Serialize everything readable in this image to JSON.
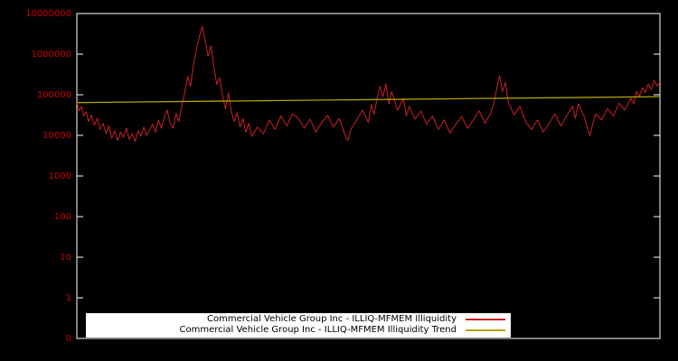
{
  "chart_data": {
    "type": "line",
    "title": "",
    "xlabel": "",
    "ylabel": "",
    "background": "#000000",
    "border_color": "#ffffff",
    "tick_label_color": "#cc0000",
    "grid": false,
    "legend_position": "bottom-center",
    "legend_background": "#ffffff",
    "y_axis": {
      "scale": "log",
      "range": [
        0.1,
        10000000
      ],
      "tick_labels": [
        "10000000",
        "1000000",
        "100000",
        "10000",
        "1000",
        "100",
        "10",
        "1",
        "0"
      ],
      "tick_values": [
        10000000,
        1000000,
        100000,
        10000,
        1000,
        100,
        10,
        1,
        0.1
      ]
    },
    "x_axis": {
      "tick_labels": []
    },
    "series": [
      {
        "name": "Commercial Vehicle Group Inc - ILLIQ-MFMEM Illiquidity",
        "color": "#cc2026",
        "points": [
          [
            0.0,
            65000
          ],
          [
            0.004,
            40000
          ],
          [
            0.008,
            52000
          ],
          [
            0.012,
            30000
          ],
          [
            0.016,
            38000
          ],
          [
            0.02,
            22000
          ],
          [
            0.025,
            32000
          ],
          [
            0.03,
            18000
          ],
          [
            0.035,
            26000
          ],
          [
            0.04,
            14000
          ],
          [
            0.045,
            20000
          ],
          [
            0.05,
            11000
          ],
          [
            0.055,
            17000
          ],
          [
            0.06,
            8500
          ],
          [
            0.065,
            13000
          ],
          [
            0.07,
            7500
          ],
          [
            0.075,
            12000
          ],
          [
            0.08,
            9000
          ],
          [
            0.085,
            15000
          ],
          [
            0.09,
            8000
          ],
          [
            0.095,
            11000
          ],
          [
            0.1,
            7000
          ],
          [
            0.105,
            13000
          ],
          [
            0.11,
            9500
          ],
          [
            0.115,
            16000
          ],
          [
            0.12,
            10000
          ],
          [
            0.125,
            14000
          ],
          [
            0.13,
            19000
          ],
          [
            0.135,
            12000
          ],
          [
            0.14,
            24000
          ],
          [
            0.145,
            15000
          ],
          [
            0.15,
            28000
          ],
          [
            0.155,
            42000
          ],
          [
            0.16,
            20000
          ],
          [
            0.165,
            15000
          ],
          [
            0.17,
            35000
          ],
          [
            0.175,
            22000
          ],
          [
            0.18,
            55000
          ],
          [
            0.185,
            110000
          ],
          [
            0.19,
            280000
          ],
          [
            0.195,
            160000
          ],
          [
            0.2,
            550000
          ],
          [
            0.205,
            1300000
          ],
          [
            0.21,
            2600000
          ],
          [
            0.215,
            4800000
          ],
          [
            0.22,
            2200000
          ],
          [
            0.225,
            900000
          ],
          [
            0.23,
            1600000
          ],
          [
            0.235,
            500000
          ],
          [
            0.24,
            180000
          ],
          [
            0.245,
            260000
          ],
          [
            0.25,
            90000
          ],
          [
            0.255,
            45000
          ],
          [
            0.26,
            110000
          ],
          [
            0.265,
            38000
          ],
          [
            0.27,
            22000
          ],
          [
            0.275,
            36000
          ],
          [
            0.28,
            16000
          ],
          [
            0.285,
            26000
          ],
          [
            0.29,
            12000
          ],
          [
            0.295,
            20000
          ],
          [
            0.3,
            9500
          ],
          [
            0.31,
            16000
          ],
          [
            0.32,
            11000
          ],
          [
            0.33,
            24000
          ],
          [
            0.34,
            14000
          ],
          [
            0.35,
            30000
          ],
          [
            0.36,
            17000
          ],
          [
            0.37,
            34000
          ],
          [
            0.38,
            26000
          ],
          [
            0.39,
            15000
          ],
          [
            0.4,
            25000
          ],
          [
            0.41,
            12000
          ],
          [
            0.42,
            21000
          ],
          [
            0.43,
            31000
          ],
          [
            0.44,
            16000
          ],
          [
            0.45,
            26000
          ],
          [
            0.46,
            10000
          ],
          [
            0.465,
            7500
          ],
          [
            0.47,
            14000
          ],
          [
            0.48,
            24000
          ],
          [
            0.49,
            42000
          ],
          [
            0.5,
            21000
          ],
          [
            0.505,
            58000
          ],
          [
            0.51,
            33000
          ],
          [
            0.515,
            85000
          ],
          [
            0.52,
            160000
          ],
          [
            0.525,
            90000
          ],
          [
            0.53,
            185000
          ],
          [
            0.535,
            60000
          ],
          [
            0.54,
            120000
          ],
          [
            0.55,
            42000
          ],
          [
            0.56,
            82000
          ],
          [
            0.565,
            30000
          ],
          [
            0.57,
            52000
          ],
          [
            0.58,
            25000
          ],
          [
            0.59,
            40000
          ],
          [
            0.6,
            19000
          ],
          [
            0.61,
            30000
          ],
          [
            0.62,
            14000
          ],
          [
            0.63,
            24000
          ],
          [
            0.64,
            11500
          ],
          [
            0.65,
            19000
          ],
          [
            0.66,
            29000
          ],
          [
            0.67,
            15000
          ],
          [
            0.68,
            24000
          ],
          [
            0.69,
            40000
          ],
          [
            0.7,
            20000
          ],
          [
            0.71,
            36000
          ],
          [
            0.715,
            62000
          ],
          [
            0.72,
            140000
          ],
          [
            0.725,
            290000
          ],
          [
            0.73,
            120000
          ],
          [
            0.735,
            200000
          ],
          [
            0.74,
            65000
          ],
          [
            0.75,
            32000
          ],
          [
            0.76,
            52000
          ],
          [
            0.77,
            21000
          ],
          [
            0.78,
            14000
          ],
          [
            0.79,
            24000
          ],
          [
            0.8,
            12000
          ],
          [
            0.81,
            20000
          ],
          [
            0.82,
            34000
          ],
          [
            0.83,
            17000
          ],
          [
            0.84,
            30000
          ],
          [
            0.85,
            52000
          ],
          [
            0.855,
            26000
          ],
          [
            0.86,
            60000
          ],
          [
            0.87,
            30000
          ],
          [
            0.875,
            16000
          ],
          [
            0.88,
            10000
          ],
          [
            0.885,
            20000
          ],
          [
            0.89,
            34000
          ],
          [
            0.9,
            24000
          ],
          [
            0.91,
            46000
          ],
          [
            0.92,
            30000
          ],
          [
            0.93,
            62000
          ],
          [
            0.94,
            42000
          ],
          [
            0.95,
            82000
          ],
          [
            0.955,
            60000
          ],
          [
            0.96,
            120000
          ],
          [
            0.965,
            92000
          ],
          [
            0.97,
            150000
          ],
          [
            0.975,
            115000
          ],
          [
            0.98,
            185000
          ],
          [
            0.985,
            135000
          ],
          [
            0.99,
            225000
          ],
          [
            0.995,
            165000
          ],
          [
            1.0,
            205000
          ]
        ]
      },
      {
        "name": "Commercial Vehicle Group Inc - ILLIQ-MFMEM Illiquidity Trend",
        "color": "#b3a100",
        "points": [
          [
            0,
            64000
          ],
          [
            1,
            90000
          ]
        ]
      }
    ]
  }
}
